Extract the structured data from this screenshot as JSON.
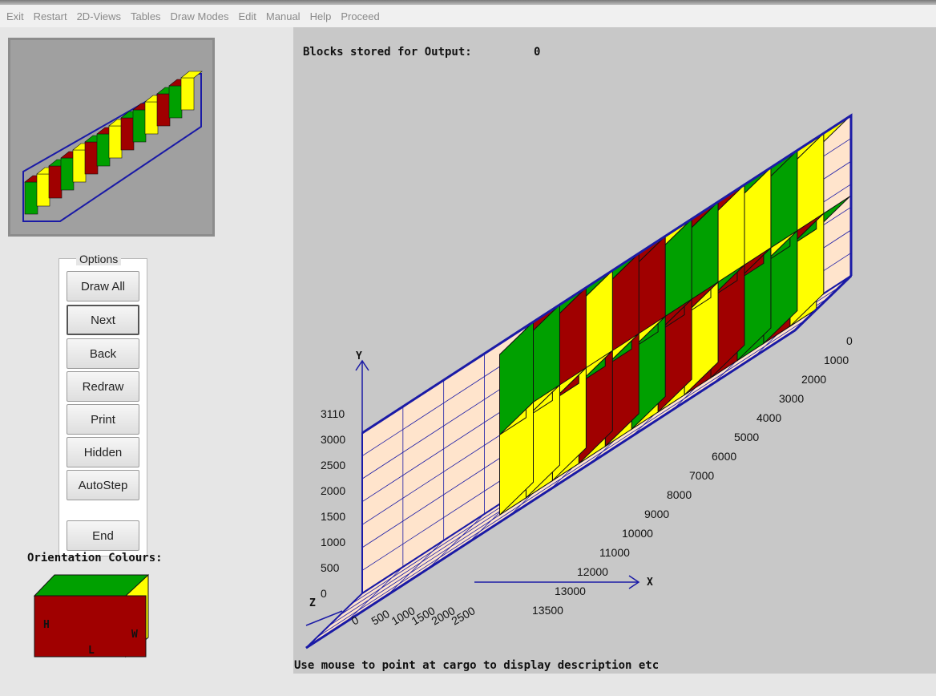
{
  "menu": [
    "Exit",
    "Restart",
    "2D-Views",
    "Tables",
    "Draw Modes",
    "Edit",
    "Manual",
    "Help",
    "Proceed"
  ],
  "options": {
    "legend": "Options",
    "buttons": [
      "Draw All",
      "Next",
      "Back",
      "Redraw",
      "Print",
      "Hidden",
      "AutoStep",
      "End"
    ]
  },
  "orientation": {
    "label": "Orientation Colours:",
    "h": "H",
    "w": "W",
    "l": "L"
  },
  "output": {
    "label": "Blocks stored for Output:",
    "count": "0"
  },
  "status": "Use mouse to point at cargo to display description etc",
  "axes": {
    "x_name": "X",
    "y_name": "Y",
    "z_name": "Z",
    "y_ticks": [
      "0",
      "500",
      "1000",
      "1500",
      "2000",
      "2500",
      "3000",
      "3110"
    ],
    "x_ticks": [
      "0",
      "1000",
      "2000",
      "3000",
      "4000",
      "5000",
      "6000",
      "7000",
      "8000",
      "9000",
      "10000",
      "11000",
      "12000",
      "13000",
      "13500"
    ],
    "z_ticks": [
      "0",
      "500",
      "1000",
      "1500",
      "2000",
      "2500"
    ]
  },
  "colors": {
    "length_face": "#a00000",
    "height_face": "#00a000",
    "width_face": "#ffff00",
    "floor": "#ffe4cc",
    "frame": "#1a1aa6",
    "canvas": "#c8c8c8"
  }
}
